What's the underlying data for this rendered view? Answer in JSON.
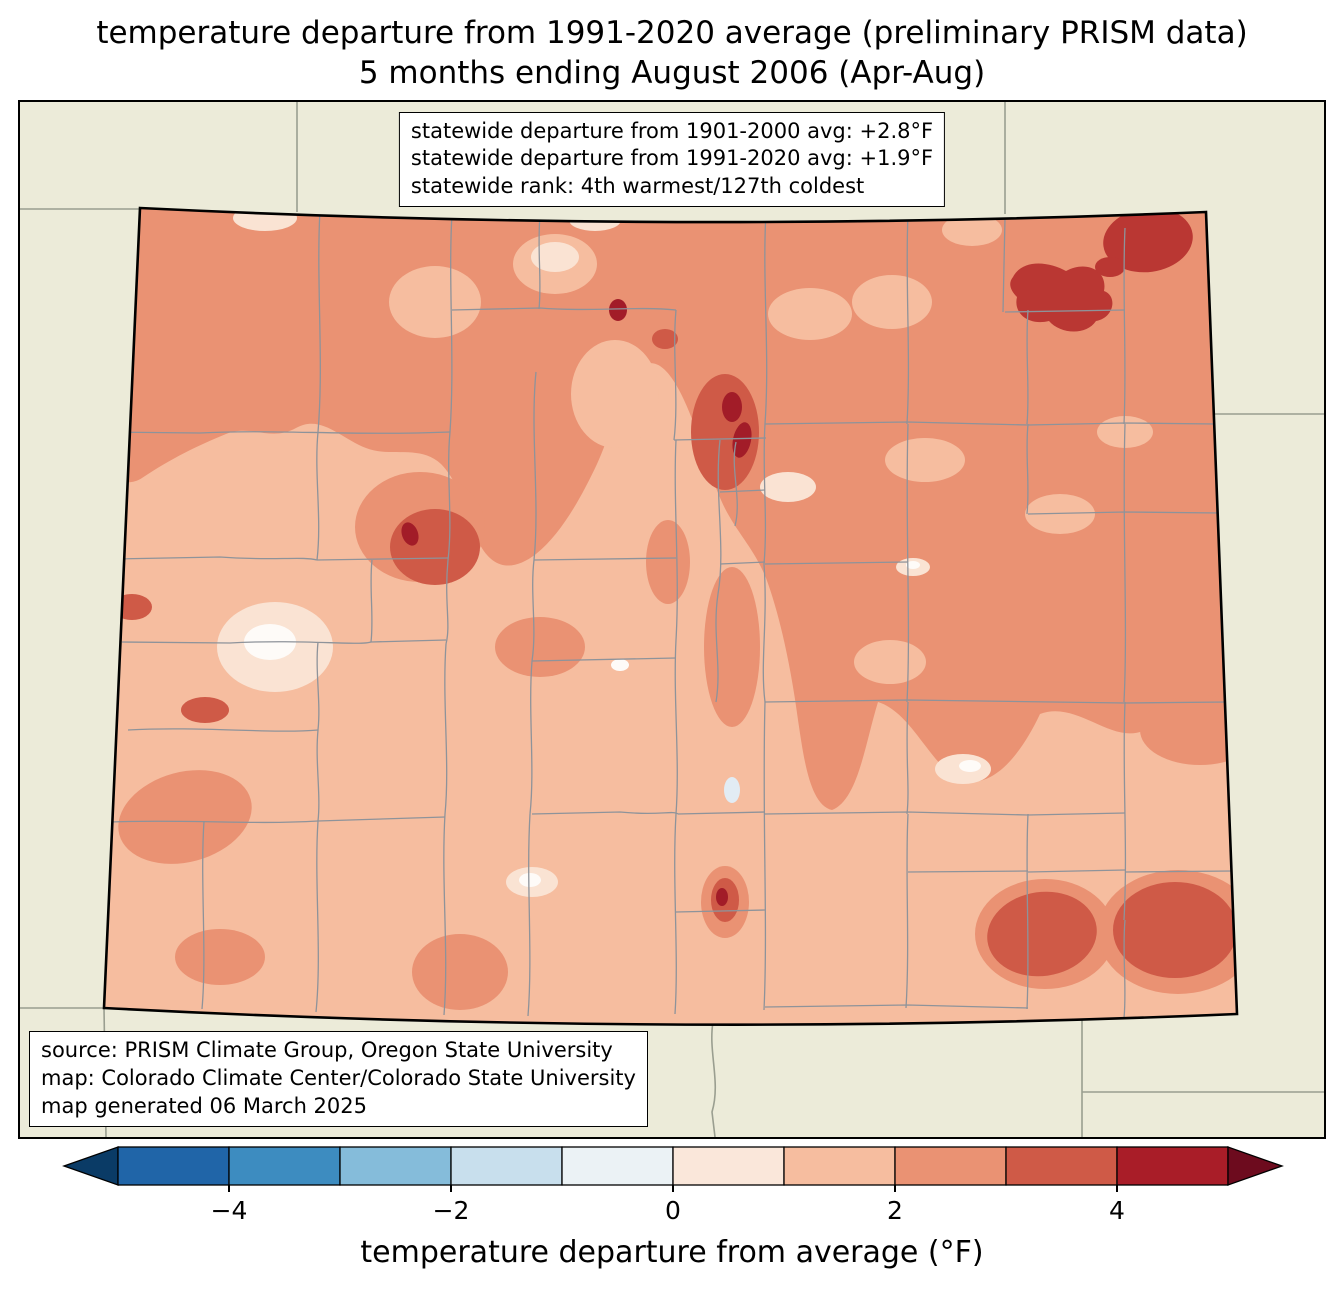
{
  "title": {
    "line1": "temperature departure from 1991-2020 average (preliminary PRISM data)",
    "line2": "5 months ending August 2006 (Apr-Aug)"
  },
  "stats_box": {
    "line1": "statewide departure from 1901-2000 avg: +2.8°F",
    "line2": "statewide departure from 1991-2020 avg: +1.9°F",
    "line3": "statewide rank: 4th warmest/127th coldest"
  },
  "source_box": {
    "line1": "source: PRISM Climate Group, Oregon State University",
    "line2": "map: Colorado Climate Center/Colorado State University",
    "line3": "map generated 06 March 2025"
  },
  "colorbar": {
    "label": "temperature departure from average (°F)",
    "ticks": [
      "−4",
      "−2",
      "0",
      "2",
      "4"
    ],
    "range_f": [
      -5,
      5
    ],
    "segment_colors": [
      "#2065A8",
      "#3D8CC0",
      "#85BCDA",
      "#C8DFED",
      "#EBF2F5",
      "#FAE7DA",
      "#F6BD9F",
      "#EA9273",
      "#CF5A47",
      "#A91D28"
    ],
    "left_arrow_color": "#0A3B66",
    "right_arrow_color": "#6D0B1E"
  },
  "palette": {
    "map_background": "#ECEBD9",
    "state_base": "#F6BD9F",
    "band_mid": "#EA9273",
    "blob_dark": "#CF5A47",
    "blob_darker": "#BA3733",
    "blob_darkest": "#A21C28",
    "patch_pale": "#FAE3D3",
    "patch_white": "#FEFBF8",
    "patch_bluepale": "#E2ECF4",
    "county_line": "#8E939A",
    "state_line": "#9A9E90",
    "outline": "#000000"
  }
}
